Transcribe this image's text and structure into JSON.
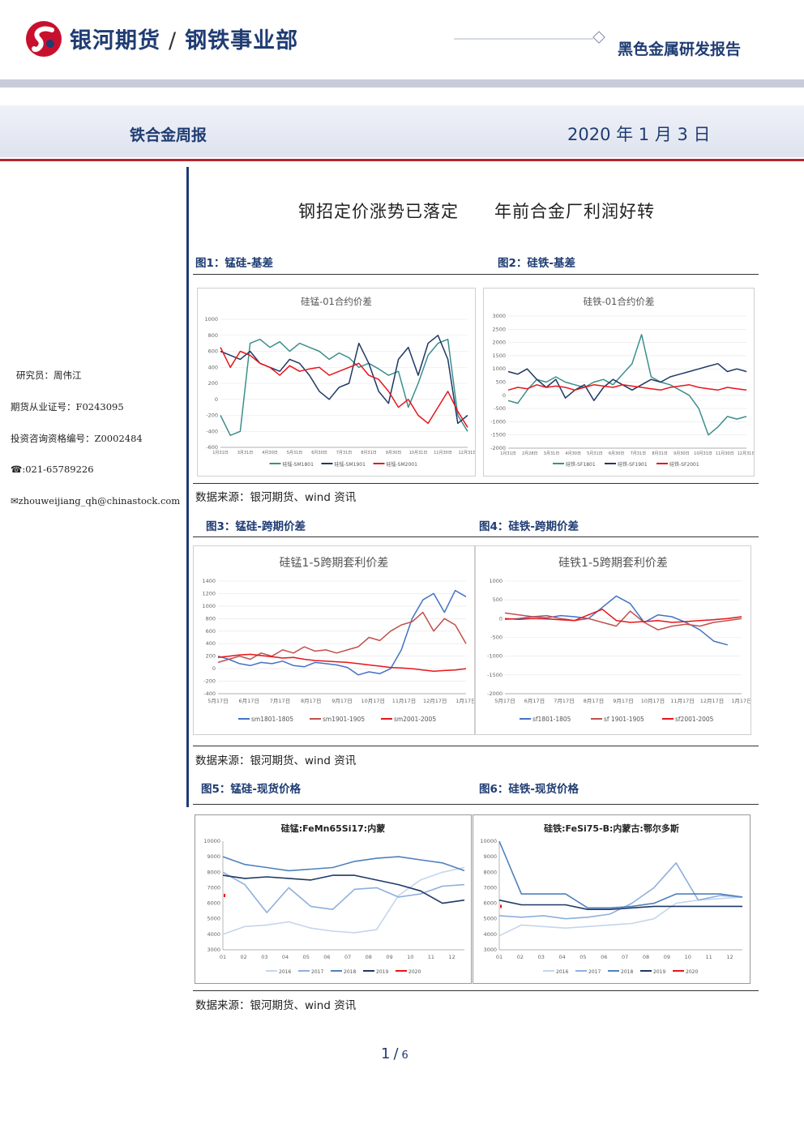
{
  "header": {
    "company": "银河期货",
    "division": "钢铁事业部",
    "report_type": "黑色金属研发报告",
    "weekly": "铁合金周报",
    "date": "2020 年 1 月 3 日"
  },
  "sidebar": {
    "researcher": "研究员：周伟江",
    "futures_cert": "期货从业证号：F0243095",
    "consult_cert": "投资咨询资格编号：Z0002484",
    "phone": "☎:021-65789226",
    "email": "✉zhouweijiang_qh@chinastock.com"
  },
  "main_title": "钢招定价涨势已落定　　年前合金厂利润好转",
  "figures": {
    "fig1_label": "图1：锰硅-基差",
    "fig2_label": "图2：硅铁-基差",
    "fig3_label": "图3：锰硅-跨期价差",
    "fig4_label": "图4：硅铁-跨期价差",
    "fig5_label": "图5：锰硅-现货价格",
    "fig6_label": "图6：硅铁-现货价格"
  },
  "source_text": "数据来源：银河期货、wind 资讯",
  "pager": {
    "current": "1",
    "total": "6"
  },
  "colors": {
    "brand": "#1f3c73",
    "accent_red": "#b3262b"
  },
  "chart_data": [
    {
      "id": "c1",
      "type": "line",
      "title": "硅锰-01合约价差",
      "ylim": [
        -600,
        1000
      ],
      "yticks": [
        "1000",
        "800",
        "600",
        "400",
        "200",
        "0",
        "-200",
        "-400",
        "-600"
      ],
      "xticks": [
        "1月31日",
        "3月31日",
        "4月30日",
        "5月31日",
        "6月30日",
        "7月31日",
        "8月31日",
        "9月30日",
        "10月31日",
        "11月30日",
        "12月31日"
      ],
      "series": [
        {
          "name": "硅锰-SM1801",
          "color": "#3a8f8c",
          "values": [
            -200,
            -450,
            -400,
            700,
            750,
            650,
            720,
            600,
            700,
            650,
            600,
            500,
            580,
            520,
            400,
            450,
            380,
            300,
            350,
            -100,
            200,
            550,
            700,
            750,
            -200,
            -400
          ]
        },
        {
          "name": "硅锰-SM1901",
          "color": "#1f3864",
          "values": [
            600,
            550,
            500,
            600,
            450,
            400,
            350,
            500,
            450,
            300,
            100,
            0,
            150,
            200,
            700,
            450,
            100,
            -50,
            500,
            650,
            300,
            700,
            800,
            500,
            -300,
            -200
          ]
        },
        {
          "name": "硅锰-SM2001",
          "color": "#e8141a",
          "values": [
            650,
            400,
            600,
            550,
            450,
            400,
            300,
            420,
            350,
            380,
            400,
            300,
            350,
            400,
            450,
            300,
            250,
            100,
            -100,
            0,
            -200,
            -300,
            -100,
            100,
            -150,
            -350
          ]
        }
      ],
      "legend_placement": "bottom"
    },
    {
      "id": "c2",
      "type": "line",
      "title": "硅铁-01合约价差",
      "ylim": [
        -2000,
        3000
      ],
      "yticks": [
        "3000",
        "2500",
        "2000",
        "1500",
        "1000",
        "500",
        "0",
        "-500",
        "-1000",
        "-1500",
        "-2000"
      ],
      "xticks": [
        "1月31日",
        "2月28日",
        "3月31日",
        "4月30日",
        "5月31日",
        "6月30日",
        "7月31日",
        "8月31日",
        "9月30日",
        "10月31日",
        "11月30日",
        "12月31日"
      ],
      "series": [
        {
          "name": "硅铁-SF1801",
          "color": "#3a8f8c",
          "values": [
            -200,
            -300,
            200,
            600,
            500,
            700,
            500,
            400,
            300,
            500,
            600,
            400,
            800,
            1200,
            2300,
            700,
            500,
            400,
            200,
            0,
            -500,
            -1500,
            -1200,
            -800,
            -900,
            -800
          ]
        },
        {
          "name": "硅铁-SF1901",
          "color": "#1f3864",
          "values": [
            900,
            800,
            1000,
            600,
            300,
            600,
            -100,
            200,
            400,
            -200,
            300,
            600,
            400,
            200,
            400,
            600,
            500,
            700,
            800,
            900,
            1000,
            1100,
            1200,
            900,
            1000,
            900
          ]
        },
        {
          "name": "硅铁-SF2001",
          "color": "#e8141a",
          "values": [
            200,
            300,
            250,
            400,
            300,
            350,
            300,
            200,
            300,
            400,
            350,
            300,
            400,
            350,
            300,
            250,
            200,
            300,
            350,
            400,
            300,
            250,
            200,
            300,
            250,
            200
          ]
        }
      ],
      "legend_placement": "bottom"
    },
    {
      "id": "c3",
      "type": "line",
      "title": "硅锰1-5跨期套利价差",
      "ylim": [
        -400,
        1400
      ],
      "yticks": [
        "1400",
        "1200",
        "1000",
        "800",
        "600",
        "400",
        "200",
        "0",
        "-200",
        "-400"
      ],
      "xticks": [
        "5月17日",
        "6月17日",
        "7月17日",
        "8月17日",
        "9月17日",
        "10月17日",
        "11月17日",
        "12月17日",
        "1月17日"
      ],
      "series": [
        {
          "name": "sm1801-1805",
          "color": "#4472c4",
          "values": [
            200,
            150,
            80,
            50,
            100,
            80,
            120,
            50,
            30,
            100,
            80,
            60,
            20,
            -100,
            -50,
            -80,
            0,
            300,
            800,
            1100,
            1200,
            900,
            1250,
            1150
          ]
        },
        {
          "name": "sm1901-1905",
          "color": "#c0504d",
          "values": [
            100,
            150,
            200,
            150,
            250,
            200,
            300,
            250,
            350,
            280,
            300,
            250,
            300,
            350,
            500,
            450,
            600,
            700,
            750,
            900,
            600,
            800,
            700,
            400
          ]
        },
        {
          "name": "sm2001-2005",
          "color": "#e8141a",
          "values": [
            180,
            200,
            220,
            230,
            210,
            190,
            170,
            180,
            150,
            130,
            120,
            110,
            100,
            80,
            60,
            40,
            20,
            10,
            0,
            -20,
            -40,
            -30,
            -20,
            0
          ]
        }
      ],
      "legend_placement": "bottom"
    },
    {
      "id": "c4",
      "type": "line",
      "title": "硅铁1-5跨期套利价差",
      "ylim": [
        -2000,
        1000
      ],
      "yticks": [
        "1000",
        "500",
        "0",
        "-500",
        "-1000",
        "-1500",
        "-2000"
      ],
      "xticks": [
        "5月17日",
        "6月17日",
        "7月17日",
        "8月17日",
        "9月17日",
        "10月17日",
        "11月17日",
        "12月17日",
        "1月17日"
      ],
      "series": [
        {
          "name": "sf1801-1805",
          "color": "#4472c4",
          "values": [
            -20,
            0,
            50,
            20,
            80,
            50,
            0,
            300,
            600,
            400,
            -100,
            100,
            50,
            -100,
            -300,
            -600,
            -700
          ]
        },
        {
          "name": "sf 1901-1905",
          "color": "#c0504d",
          "values": [
            150,
            100,
            50,
            80,
            0,
            -50,
            0,
            -100,
            -200,
            200,
            -100,
            -300,
            -200,
            -150,
            -200,
            -100,
            -50,
            0
          ]
        },
        {
          "name": "sf2001-2005",
          "color": "#e8141a",
          "values": [
            0,
            -20,
            0,
            -10,
            -30,
            -50,
            100,
            250,
            -50,
            -100,
            -80,
            -50,
            -100,
            -80,
            -50,
            -30,
            0,
            50
          ]
        }
      ],
      "legend_placement": "bottom"
    },
    {
      "id": "c5",
      "type": "line",
      "title": "硅锰:FeMn65Si17:内蒙",
      "ylim": [
        3000,
        10000
      ],
      "yticks": [
        "10000",
        "9000",
        "8000",
        "7000",
        "6000",
        "5000",
        "4000",
        "3000"
      ],
      "xticks": [
        "01",
        "02",
        "03",
        "04",
        "05",
        "06",
        "07",
        "08",
        "09",
        "10",
        "11",
        "12"
      ],
      "series": [
        {
          "name": "2016",
          "color": "#c5d5ec",
          "values": [
            4000,
            4500,
            4600,
            4800,
            4400,
            4200,
            4100,
            4300,
            6500,
            7500,
            8000,
            8300
          ]
        },
        {
          "name": "2017",
          "color": "#8db0dc",
          "values": [
            8000,
            7200,
            5400,
            7000,
            5800,
            5600,
            6900,
            7000,
            6400,
            6600,
            7100,
            7200
          ]
        },
        {
          "name": "2018",
          "color": "#4f81bd",
          "values": [
            9000,
            8500,
            8300,
            8100,
            8200,
            8300,
            8700,
            8900,
            9000,
            8800,
            8600,
            8100
          ]
        },
        {
          "name": "2019",
          "color": "#1f3864",
          "values": [
            7800,
            7600,
            7700,
            7600,
            7500,
            7800,
            7800,
            7500,
            7200,
            6800,
            6000,
            6200
          ]
        },
        {
          "name": "2020",
          "color": "#e8141a",
          "values": [
            6500
          ]
        }
      ],
      "legend_placement": "bottom"
    },
    {
      "id": "c6",
      "type": "line",
      "title": "硅铁:FeSi75-B:内蒙古:鄂尔多斯",
      "ylim": [
        3000,
        10000
      ],
      "yticks": [
        "10000",
        "9000",
        "8000",
        "7000",
        "6000",
        "5000",
        "4000",
        "3000"
      ],
      "xticks": [
        "01",
        "02",
        "03",
        "04",
        "05",
        "06",
        "07",
        "08",
        "09",
        "10",
        "11",
        "12"
      ],
      "series": [
        {
          "name": "2016",
          "color": "#c5d5ec",
          "values": [
            3900,
            4600,
            4500,
            4400,
            4500,
            4600,
            4700,
            5000,
            6000,
            6200,
            6300,
            6400
          ]
        },
        {
          "name": "2017",
          "color": "#8db0dc",
          "values": [
            5200,
            5100,
            5200,
            5000,
            5100,
            5300,
            6000,
            7000,
            8600,
            6200,
            6500,
            6400
          ]
        },
        {
          "name": "2018",
          "color": "#4f81bd",
          "values": [
            10000,
            6600,
            6600,
            6600,
            5700,
            5700,
            5800,
            6000,
            6600,
            6600,
            6600,
            6400
          ]
        },
        {
          "name": "2019",
          "color": "#1f3864",
          "values": [
            6200,
            5900,
            5900,
            5900,
            5600,
            5600,
            5700,
            5800,
            5800,
            5800,
            5800,
            5800
          ]
        },
        {
          "name": "2020",
          "color": "#e8141a",
          "values": [
            5800
          ]
        }
      ],
      "legend_placement": "bottom"
    }
  ]
}
